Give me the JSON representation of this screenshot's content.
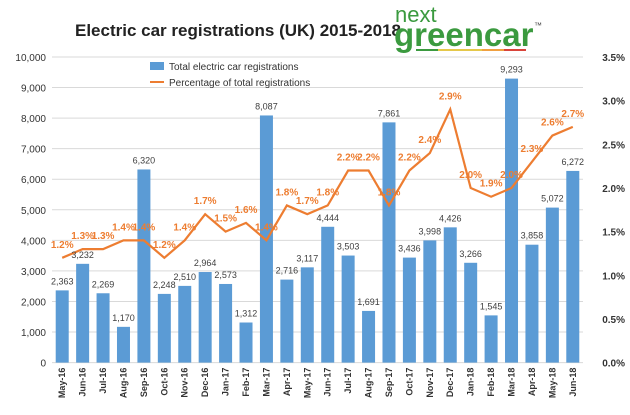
{
  "logo": {
    "line1": "next",
    "line2": "greencar",
    "tm": "™"
  },
  "chart_data": {
    "type": "bar+line",
    "title": "Electric car registrations (UK) 2015-2018",
    "categories": [
      "May-16",
      "Jun-16",
      "Jul-16",
      "Aug-16",
      "Sep-16",
      "Oct-16",
      "Nov-16",
      "Dec-16",
      "Jan-17",
      "Feb-17",
      "Mar-17",
      "Apr-17",
      "May-17",
      "Jun-17",
      "Jul-17",
      "Aug-17",
      "Sep-17",
      "Oct-17",
      "Nov-17",
      "Dec-17",
      "Jan-18",
      "Feb-18",
      "Mar-18",
      "Apr-18",
      "May-18",
      "Jun-18"
    ],
    "series": [
      {
        "name": "Total electric car registrations",
        "type": "bar",
        "axis": "left",
        "color": "#5b9bd5",
        "values": [
          2363,
          3232,
          2269,
          1170,
          6320,
          2248,
          2510,
          2964,
          2573,
          1312,
          8087,
          2716,
          3117,
          4444,
          3503,
          1691,
          7861,
          3436,
          3998,
          4426,
          3266,
          1545,
          9293,
          3858,
          5072,
          6272
        ],
        "labels": [
          "2,363",
          "3,232",
          "2,269",
          "1,170",
          "6,320",
          "2,248",
          "2,510",
          "2,964",
          "2,573",
          "1,312",
          "8,087",
          "2,716",
          "3,117",
          "4,444",
          "3,503",
          "1,691",
          "7,861",
          "3,436",
          "3,998",
          "4,426",
          "3,266",
          "1,545",
          "9,293",
          "3,858",
          "5,072",
          "6,272"
        ]
      },
      {
        "name": "Percentage of total registrations",
        "type": "line",
        "axis": "right",
        "color": "#ed7d31",
        "values": [
          1.2,
          1.3,
          1.3,
          1.4,
          1.4,
          1.2,
          1.4,
          1.7,
          1.5,
          1.6,
          1.4,
          1.8,
          1.7,
          1.8,
          2.2,
          2.2,
          1.8,
          2.2,
          2.4,
          2.9,
          2.0,
          1.9,
          2.0,
          2.3,
          2.6,
          2.7
        ],
        "labels": [
          "1.2%",
          "1.3%",
          "1.3%",
          "1.4%",
          "1.4%",
          "1.2%",
          "1.4%",
          "1.7%",
          "1.5%",
          "1.6%",
          "1.4%",
          "1.8%",
          "1.7%",
          "1.8%",
          "2.2%",
          "2.2%",
          "1.8%",
          "2.2%",
          "2.4%",
          "2.9%",
          "2.0%",
          "1.9%",
          "2.0%",
          "2.3%",
          "2.6%",
          "2.7%"
        ]
      }
    ],
    "ylim_left": [
      0,
      10000
    ],
    "ylim_right": [
      0,
      3.5
    ],
    "left_ticks": [
      "0",
      "1,000",
      "2,000",
      "3,000",
      "4,000",
      "5,000",
      "6,000",
      "7,000",
      "8,000",
      "9,000",
      "10,000"
    ],
    "right_ticks": [
      "0.0%",
      "0.5%",
      "1.0%",
      "1.5%",
      "2.0%",
      "2.5%",
      "3.0%",
      "3.5%"
    ],
    "grid": true,
    "legend": "top-left"
  }
}
